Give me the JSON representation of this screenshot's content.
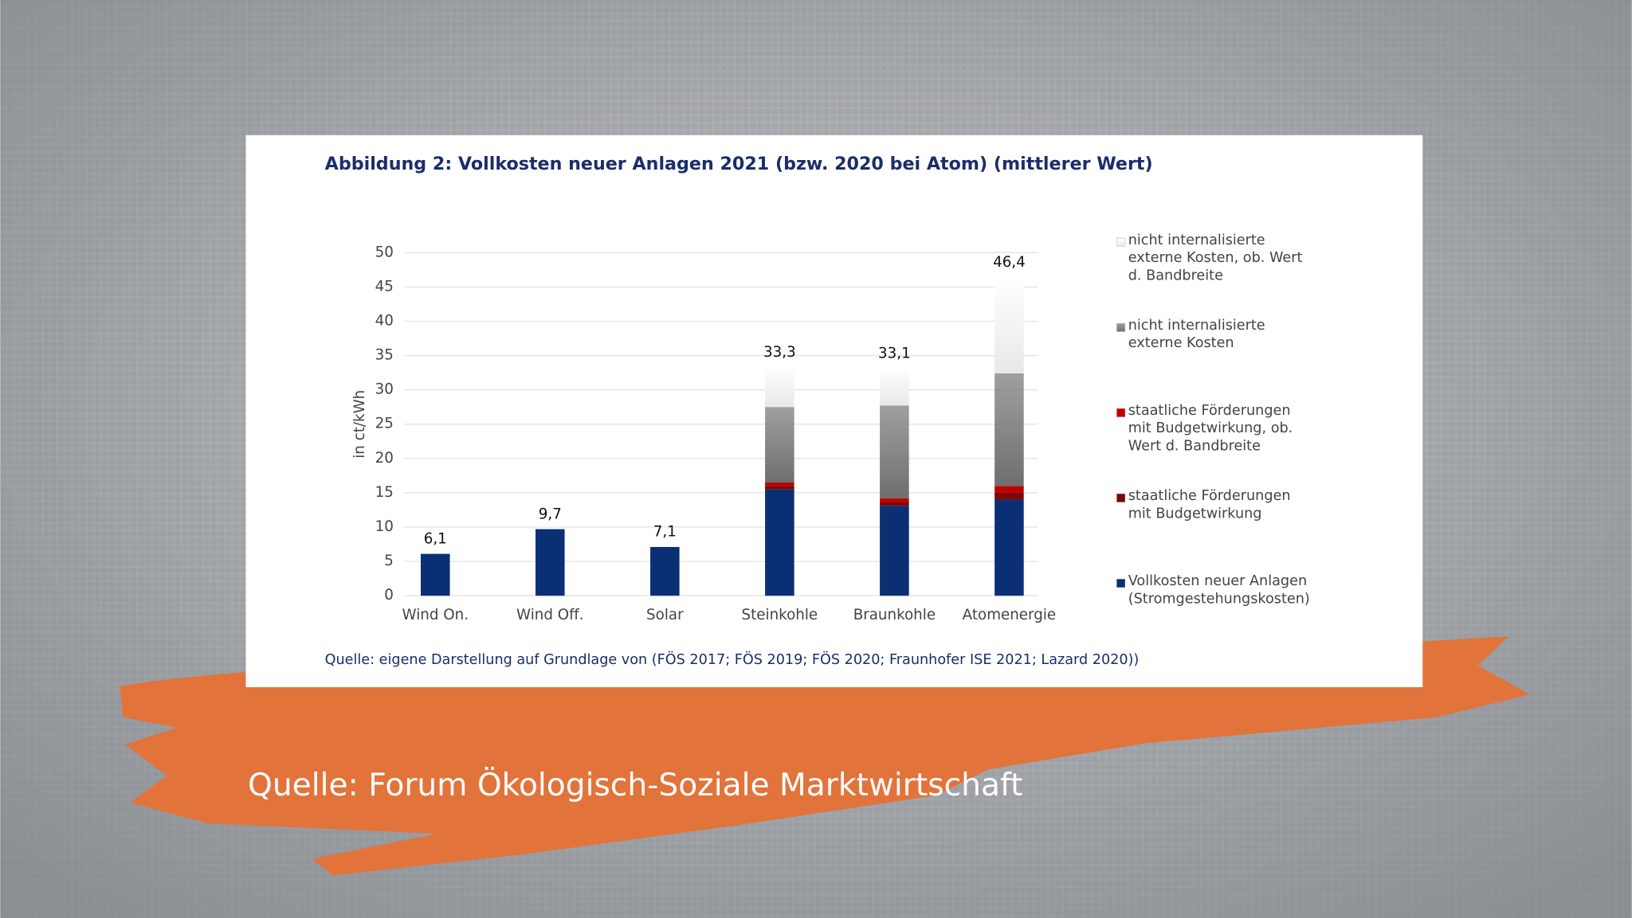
{
  "chart_data": {
    "type": "stacked_bar",
    "title": "Abbildung 2: Vollkosten neuer Anlagen 2021 (bzw. 2020 bei Atom) (mittlerer Wert)",
    "y_label": "in ct/kWh",
    "source": "Quelle: eigene Darstellung auf Grundlage von (FÖS 2017; FÖS 2019; FÖS 2020; Fraunhofer ISE 2021; Lazard 2020))",
    "categories": [
      "Wind On.",
      "Wind Off.",
      "Solar",
      "Steinkohle",
      "Braunkohle",
      "Atomenergie"
    ],
    "series": [
      {
        "name": "Vollkosten neuer Anlagen (Stromgestehungskosten)",
        "color": "#0b2f73",
        "values": [
          6.1,
          9.7,
          7.1,
          15.5,
          13.1,
          14.0
        ]
      },
      {
        "name": "staatliche Förderungen mit Budgetwirkung",
        "color": "#7a0a0a",
        "values": [
          null,
          null,
          null,
          0.5,
          0.5,
          1.0
        ]
      },
      {
        "name": "staatliche Förderungen mit Budgetwirkung, ob. Wert d. Bandbreite",
        "color": "#c00000",
        "values": [
          null,
          null,
          null,
          0.5,
          0.6,
          1.0
        ]
      },
      {
        "name": "nicht internalisierte externe Kosten",
        "color": "#7f7f7f",
        "values": [
          null,
          null,
          null,
          11.0,
          13.5,
          16.4
        ]
      },
      {
        "name": "nicht internalisierte externe Kosten, ob. Wert d. Bandbreite",
        "color": "#e8e8e8",
        "values": [
          null,
          null,
          null,
          5.8,
          5.4,
          14.0
        ]
      }
    ],
    "totals": [
      6.1,
      9.7,
      7.1,
      33.3,
      33.1,
      46.4
    ],
    "total_labels": [
      "6,1",
      "9,7",
      "7,1",
      "33,3",
      "33,1",
      "46,4"
    ],
    "ylim": [
      0,
      50
    ],
    "yticks": [
      0,
      5,
      10,
      15,
      20,
      25,
      30,
      35,
      40,
      45,
      50
    ],
    "grid": true,
    "legend": "right"
  },
  "caption": "Quelle: Forum Ökologisch-Soziale Marktwirtschaft"
}
